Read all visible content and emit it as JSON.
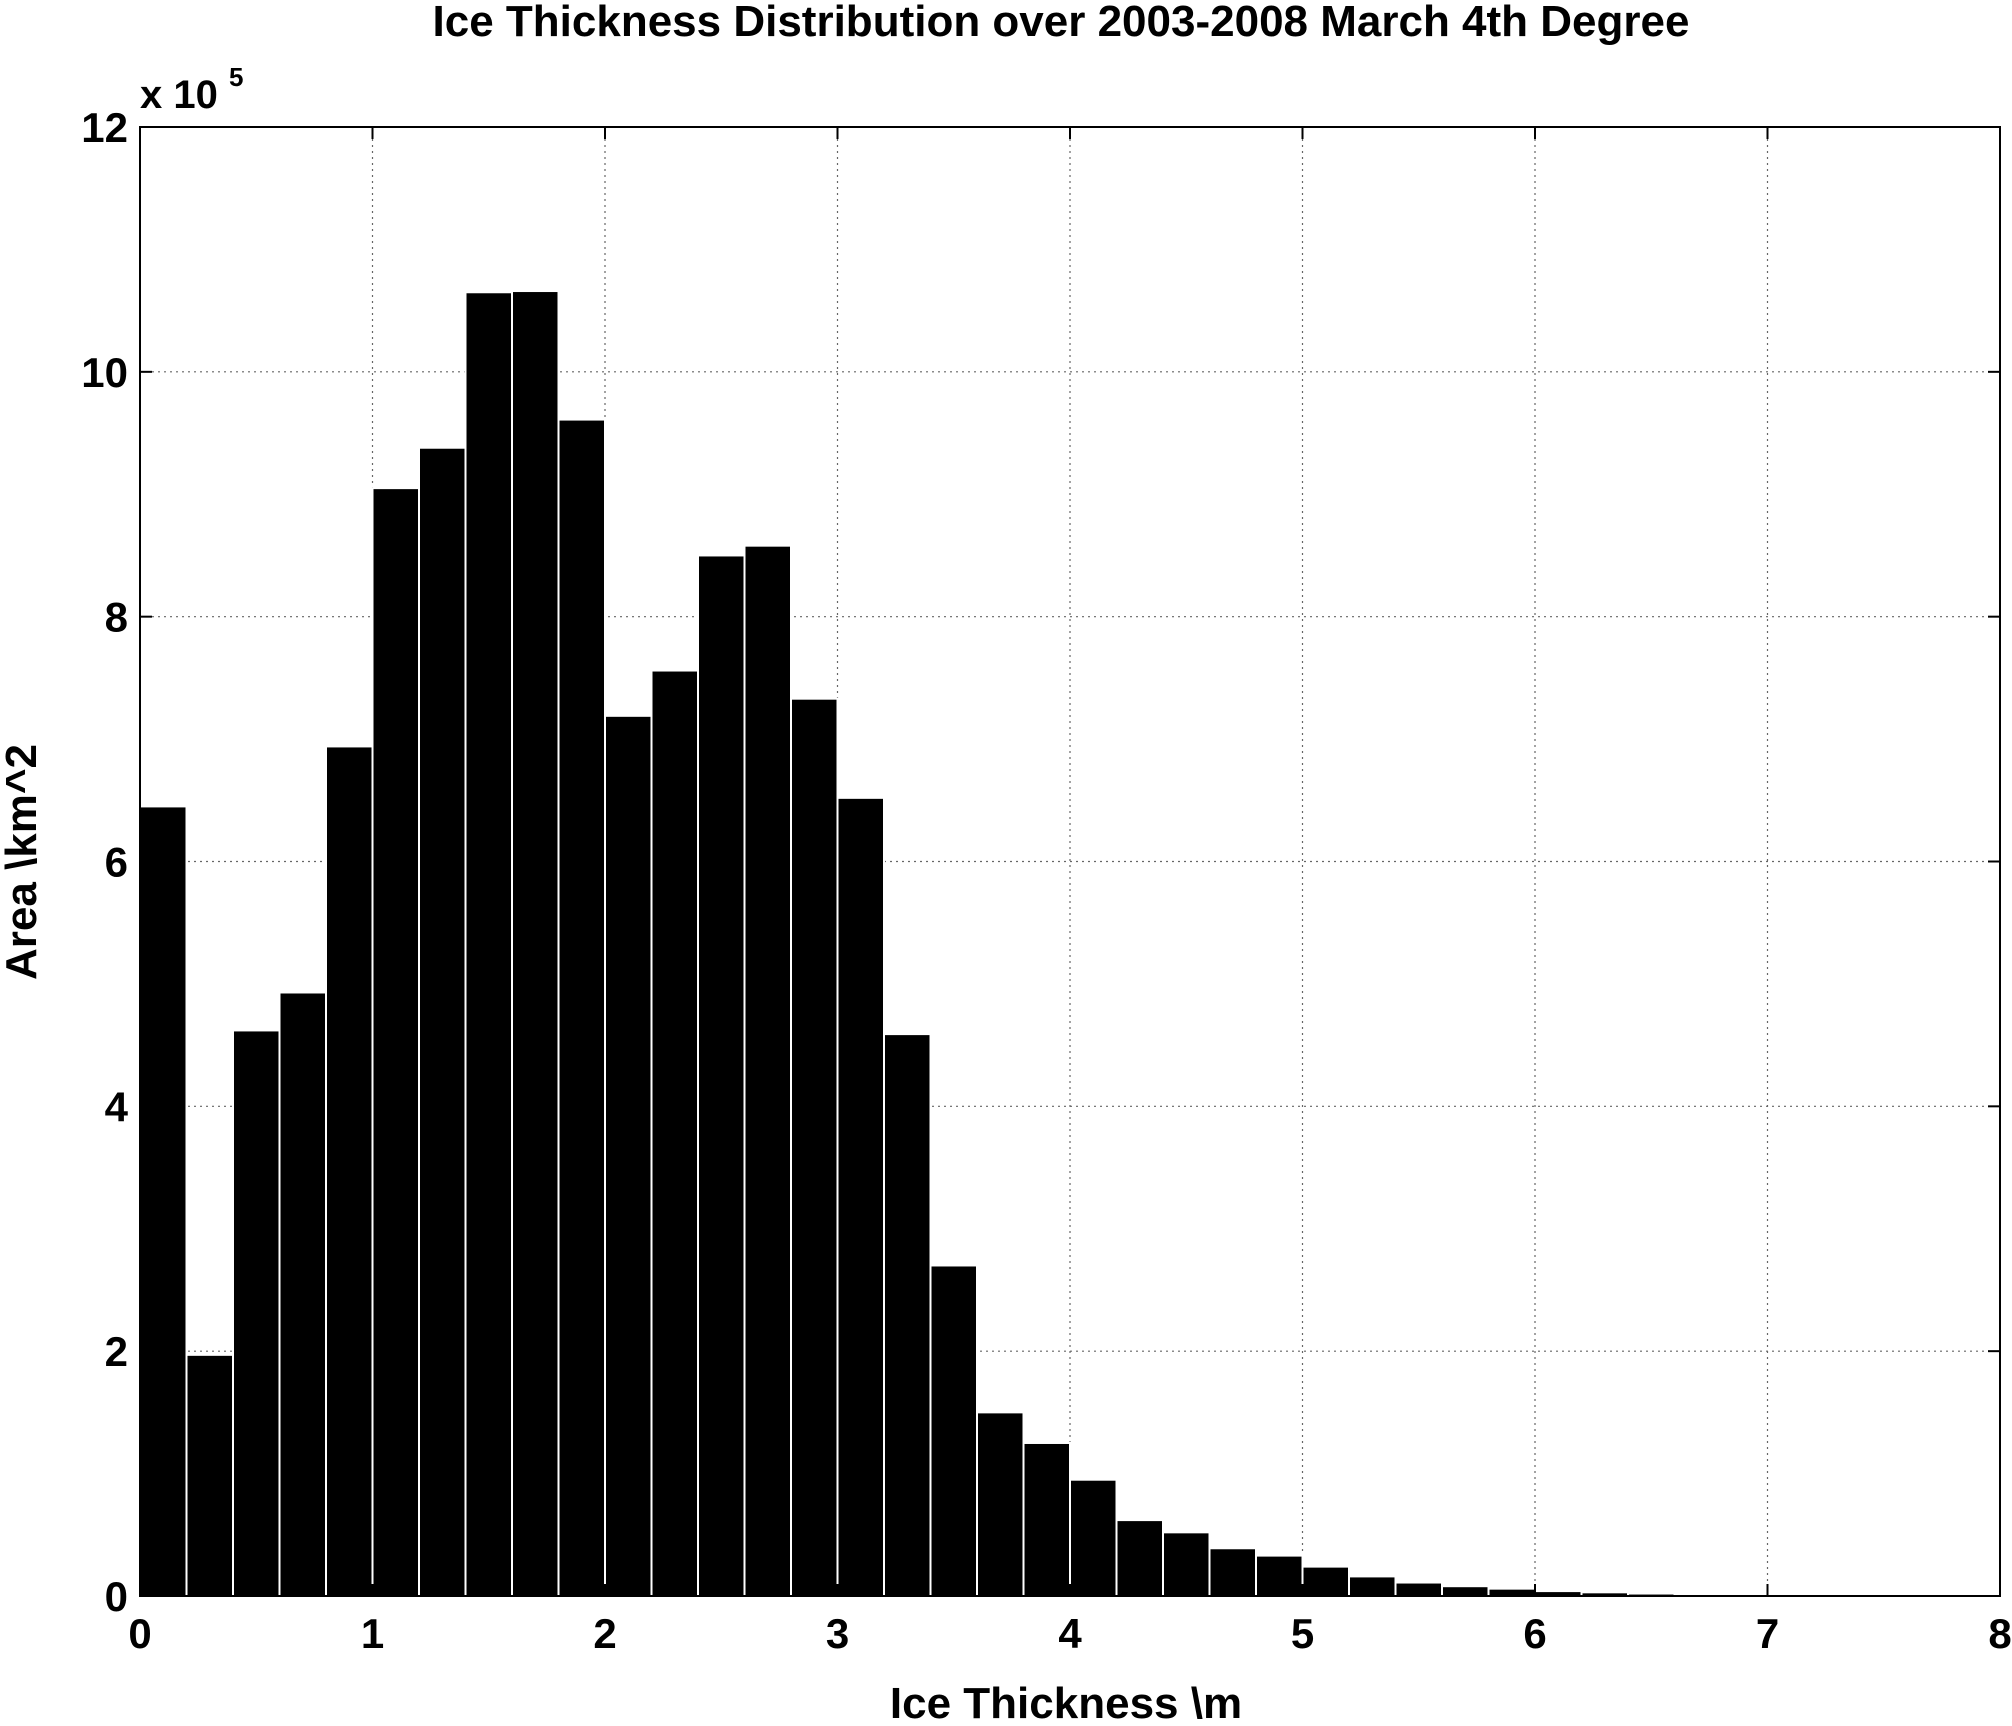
{
  "chart_data": {
    "type": "bar",
    "title": "Ice Thickness Distribution over 2003-2008 March 4th Degree",
    "xlabel": "Ice Thickness \\m",
    "ylabel": "Area \\km^2",
    "y_multiplier_base": "x 10",
    "y_multiplier_exp": "5",
    "xlim": [
      0,
      8
    ],
    "ylim": [
      0,
      12
    ],
    "bin_width": 0.2,
    "x_ticks": [
      0,
      1,
      2,
      3,
      4,
      5,
      6,
      7,
      8
    ],
    "y_ticks": [
      0,
      2,
      4,
      6,
      8,
      10,
      12
    ],
    "grid": true,
    "bar_color": "#000000",
    "bar_edge_color": "#ffffff",
    "x": [
      0.1,
      0.3,
      0.5,
      0.7,
      0.9,
      1.1,
      1.3,
      1.5,
      1.7,
      1.9,
      2.1,
      2.3,
      2.5,
      2.7,
      2.9,
      3.1,
      3.3,
      3.5,
      3.7,
      3.9,
      4.1,
      4.3,
      4.5,
      4.7,
      4.9,
      5.1,
      5.3,
      5.5,
      5.7,
      5.9,
      6.1,
      6.3,
      6.5,
      6.7,
      6.9,
      7.1,
      7.3,
      7.5,
      7.7,
      7.9
    ],
    "values": [
      6.45,
      1.97,
      4.62,
      4.93,
      6.94,
      9.05,
      9.38,
      10.65,
      10.66,
      9.61,
      7.19,
      7.56,
      8.5,
      8.58,
      7.33,
      6.52,
      4.59,
      2.7,
      1.5,
      1.25,
      0.95,
      0.62,
      0.52,
      0.39,
      0.33,
      0.24,
      0.16,
      0.11,
      0.08,
      0.06,
      0.04,
      0.03,
      0.02,
      0.01,
      0.01,
      0.005,
      0.005,
      0.005,
      0.005,
      0.005
    ]
  }
}
